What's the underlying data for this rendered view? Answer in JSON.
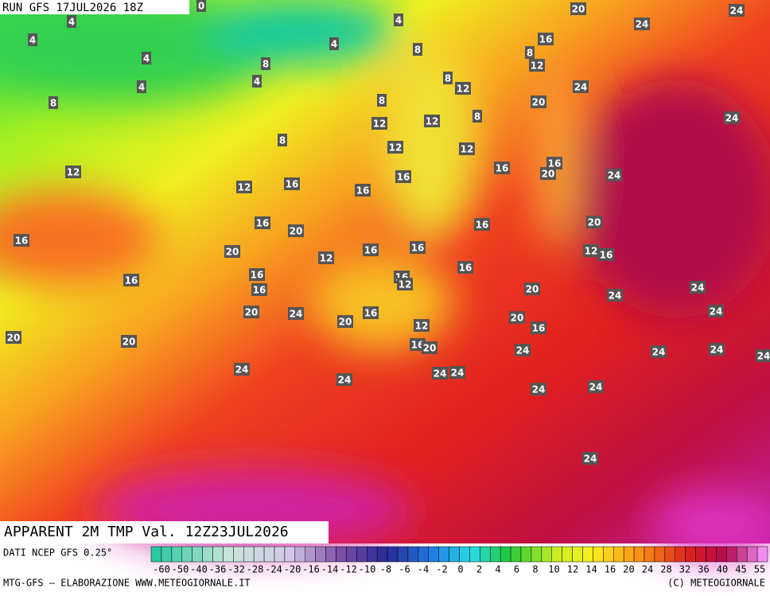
{
  "header": {
    "run": "RUN GFS 17JUL2026 18Z",
    "title": "APPARENT 2M TMP Val. 12Z23JUL2026"
  },
  "map": {
    "labels": [
      "0",
      "4",
      "4",
      "4",
      "4",
      "4",
      "4",
      "4",
      "8",
      "8",
      "8",
      "8",
      "8",
      "8",
      "8",
      "8",
      "20",
      "24",
      "24",
      "16",
      "12",
      "12",
      "24",
      "20",
      "24",
      "12",
      "12",
      "12",
      "12",
      "12",
      "16",
      "16",
      "16",
      "20",
      "24",
      "12",
      "16",
      "16",
      "16",
      "16",
      "20",
      "20",
      "16",
      "20",
      "12",
      "16",
      "16",
      "12",
      "16",
      "16",
      "16",
      "16",
      "16",
      "12",
      "16",
      "20",
      "24",
      "24",
      "20",
      "24",
      "16",
      "24",
      "20",
      "20",
      "12",
      "16",
      "20",
      "20",
      "16",
      "20",
      "24",
      "24",
      "24",
      "24",
      "24",
      "24",
      "24",
      "24",
      "24",
      "24",
      "24"
    ]
  },
  "legend": {
    "source": "DATI NCEP GFS 0.25°",
    "labels": [
      "-60",
      "-50",
      "-40",
      "-36",
      "-32",
      "-28",
      "-24",
      "-20",
      "-16",
      "-14",
      "-12",
      "-10",
      "-8",
      "-6",
      "-4",
      "-2",
      "0",
      "2",
      "4",
      "6",
      "8",
      "10",
      "12",
      "14",
      "16",
      "20",
      "24",
      "28",
      "32",
      "36",
      "40",
      "45",
      "55"
    ]
  },
  "footer": {
    "left": "MTG-GFS — ELABORAZIONE WWW.METEOGIORNALE.IT",
    "right": "(C) METEOGIORNALE"
  }
}
